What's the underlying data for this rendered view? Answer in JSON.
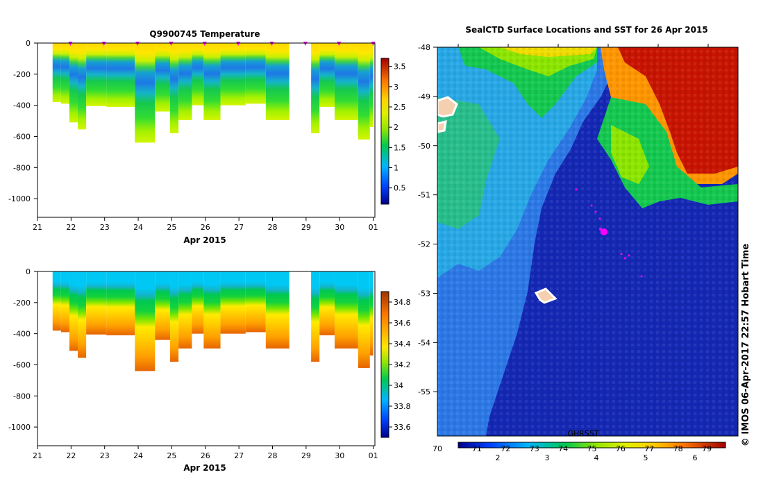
{
  "page": {
    "copyright": "© IMOS 06-Apr-2017 22:57 Hobart Time"
  },
  "chart_data": [
    {
      "type": "heatmap",
      "title": "Q9900745  Temperature",
      "xlabel": "Apr 2015",
      "x_ticks": [
        "21",
        "22",
        "23",
        "24",
        "25",
        "26",
        "27",
        "28",
        "29",
        "30",
        "01"
      ],
      "ylabel": "",
      "y_ticks": [
        0,
        -200,
        -400,
        -600,
        -800,
        -1000
      ],
      "ylim": [
        -1120,
        0
      ],
      "xlim": [
        21,
        31.05
      ],
      "colorbar": {
        "ticks": [
          "0.5",
          "1",
          "1.5",
          "2",
          "2.5",
          "3",
          "3.5"
        ],
        "range": [
          0.1,
          3.7
        ]
      },
      "profile_markers": [
        21.98,
        22.98,
        23.98,
        24.98,
        25.98,
        26.98,
        27.98,
        28.98,
        29.98,
        31.0
      ],
      "profiles": [
        {
          "x0": 21.45,
          "x1": 21.7,
          "depth": 380
        },
        {
          "x0": 21.7,
          "x1": 21.95,
          "depth": 390
        },
        {
          "x0": 21.95,
          "x1": 22.2,
          "depth": 510
        },
        {
          "x0": 22.2,
          "x1": 22.45,
          "depth": 555
        },
        {
          "x0": 22.45,
          "x1": 23.05,
          "depth": 405
        },
        {
          "x0": 23.05,
          "x1": 23.9,
          "depth": 410
        },
        {
          "x0": 23.9,
          "x1": 24.5,
          "depth": 640
        },
        {
          "x0": 24.5,
          "x1": 24.95,
          "depth": 440
        },
        {
          "x0": 24.95,
          "x1": 25.2,
          "depth": 580
        },
        {
          "x0": 25.2,
          "x1": 25.6,
          "depth": 495
        },
        {
          "x0": 25.6,
          "x1": 25.95,
          "depth": 400
        },
        {
          "x0": 25.95,
          "x1": 26.45,
          "depth": 495
        },
        {
          "x0": 26.45,
          "x1": 27.2,
          "depth": 400
        },
        {
          "x0": 27.2,
          "x1": 27.8,
          "depth": 390
        },
        {
          "x0": 27.8,
          "x1": 28.5,
          "depth": 495
        },
        {
          "x0": 29.15,
          "x1": 29.4,
          "depth": 580
        },
        {
          "x0": 29.4,
          "x1": 29.85,
          "depth": 410
        },
        {
          "x0": 29.85,
          "x1": 30.55,
          "depth": 495
        },
        {
          "x0": 30.55,
          "x1": 30.9,
          "depth": 620
        },
        {
          "x0": 30.9,
          "x1": 31.0,
          "depth": 540
        }
      ]
    },
    {
      "type": "heatmap",
      "title": "",
      "xlabel": "Apr 2015",
      "x_ticks": [
        "21",
        "22",
        "23",
        "24",
        "25",
        "26",
        "27",
        "28",
        "29",
        "30",
        "01"
      ],
      "y_ticks": [
        0,
        -200,
        -400,
        -600,
        -800,
        -1000
      ],
      "ylim": [
        -1120,
        0
      ],
      "xlim": [
        21,
        31.05
      ],
      "colorbar": {
        "ticks": [
          "33.6",
          "33.8",
          "34",
          "34.2",
          "34.4",
          "34.6",
          "34.8"
        ],
        "range": [
          33.5,
          34.9
        ]
      }
    },
    {
      "type": "heatmap",
      "title": "SealCTD Surface Locations and SST for 26 Apr 2015",
      "y_ticks": [
        "-48",
        "-49",
        "-50",
        "-51",
        "-52",
        "-53",
        "-54",
        "-55"
      ],
      "ylim": [
        -55.9,
        -48
      ],
      "colorbar": {
        "label": "GHRSST",
        "top_ticks": [
          "70",
          "71",
          "72",
          "73",
          "74",
          "75",
          "76",
          "77",
          "78",
          "79"
        ],
        "bottom_ticks": [
          "2",
          "3",
          "4",
          "5",
          "6"
        ]
      }
    }
  ]
}
